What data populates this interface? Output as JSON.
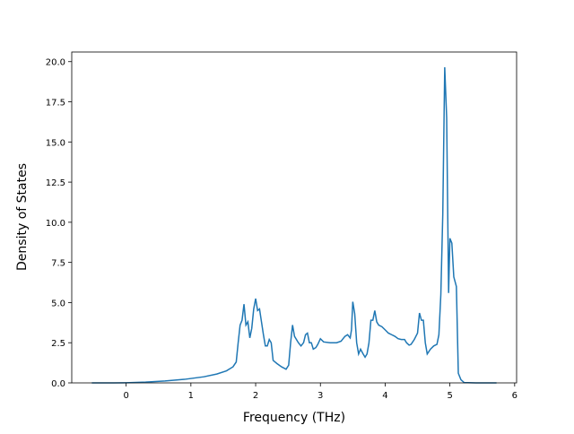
{
  "chart_data": {
    "type": "line",
    "xlabel": "Frequency (THz)",
    "ylabel": "Density of States",
    "x": [
      -0.53,
      -0.2,
      0,
      0.3,
      0.6,
      0.9,
      1.2,
      1.4,
      1.55,
      1.65,
      1.7,
      1.73,
      1.76,
      1.79,
      1.82,
      1.85,
      1.88,
      1.91,
      1.94,
      1.97,
      2.0,
      2.03,
      2.06,
      2.09,
      2.12,
      2.15,
      2.18,
      2.21,
      2.24,
      2.27,
      2.33,
      2.4,
      2.47,
      2.51,
      2.54,
      2.57,
      2.6,
      2.63,
      2.66,
      2.7,
      2.74,
      2.77,
      2.8,
      2.83,
      2.86,
      2.89,
      2.93,
      2.96,
      3.0,
      3.05,
      3.15,
      3.25,
      3.32,
      3.38,
      3.42,
      3.46,
      3.48,
      3.5,
      3.53,
      3.56,
      3.59,
      3.62,
      3.66,
      3.69,
      3.72,
      3.75,
      3.78,
      3.81,
      3.84,
      3.87,
      3.9,
      3.95,
      4.0,
      4.05,
      4.1,
      4.15,
      4.2,
      4.25,
      4.3,
      4.33,
      4.37,
      4.4,
      4.45,
      4.5,
      4.53,
      4.56,
      4.59,
      4.62,
      4.65,
      4.7,
      4.75,
      4.8,
      4.83,
      4.86,
      4.89,
      4.92,
      4.95,
      4.98,
      5.0,
      5.03,
      5.06,
      5.1,
      5.13,
      5.17,
      5.22,
      5.4,
      5.72
    ],
    "series": [
      {
        "color": "#1f77b4",
        "values": [
          0,
          0,
          0.01,
          0.05,
          0.12,
          0.22,
          0.38,
          0.55,
          0.75,
          1.0,
          1.3,
          2.5,
          3.6,
          3.9,
          4.9,
          3.6,
          3.8,
          2.8,
          3.4,
          4.6,
          5.25,
          4.5,
          4.6,
          3.8,
          3.0,
          2.3,
          2.3,
          2.7,
          2.5,
          1.4,
          1.2,
          1.0,
          0.85,
          1.1,
          2.5,
          3.6,
          2.9,
          2.7,
          2.5,
          2.3,
          2.5,
          3.0,
          3.1,
          2.5,
          2.5,
          2.1,
          2.2,
          2.4,
          2.75,
          2.55,
          2.5,
          2.5,
          2.6,
          2.9,
          3.0,
          2.8,
          3.3,
          5.05,
          4.3,
          2.5,
          1.8,
          2.1,
          1.8,
          1.6,
          1.8,
          2.5,
          3.9,
          3.9,
          4.5,
          3.8,
          3.6,
          3.5,
          3.3,
          3.1,
          3.0,
          2.9,
          2.75,
          2.7,
          2.7,
          2.5,
          2.35,
          2.4,
          2.7,
          3.1,
          4.35,
          3.9,
          3.9,
          2.5,
          1.8,
          2.1,
          2.3,
          2.4,
          3.0,
          5.5,
          10.5,
          19.65,
          16.5,
          5.6,
          9.0,
          8.7,
          6.6,
          6.0,
          0.6,
          0.2,
          0.02,
          0,
          0
        ]
      }
    ],
    "xlim": [
      -0.84,
      6.03
    ],
    "ylim": [
      0,
      20.6
    ],
    "xticks": [
      0,
      1,
      2,
      3,
      4,
      5,
      6
    ],
    "yticks": [
      {
        "value": 0,
        "label": "0.0"
      },
      {
        "value": 2.5,
        "label": "2.5"
      },
      {
        "value": 5,
        "label": "5.0"
      },
      {
        "value": 7.5,
        "label": "7.5"
      },
      {
        "value": 10,
        "label": "10.0"
      },
      {
        "value": 12.5,
        "label": "12.5"
      },
      {
        "value": 15,
        "label": "15.0"
      },
      {
        "value": 17.5,
        "label": "17.5"
      },
      {
        "value": 20,
        "label": "20.0"
      }
    ]
  }
}
